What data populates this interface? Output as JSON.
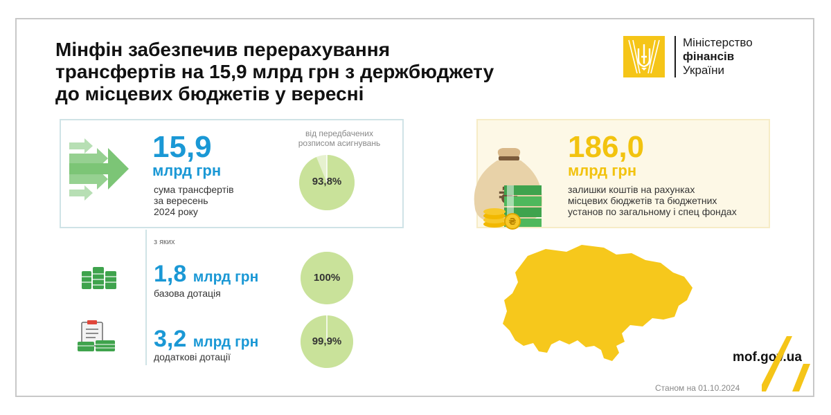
{
  "title": {
    "line1": "Мінфін забезпечив перерахування",
    "line2": "трансфертів на 15,9 млрд грн з держбюджету",
    "line3": "до місцевих бюджетів у вересні"
  },
  "logo": {
    "line1": "Міністерство",
    "line2": "фінансів",
    "line3": "України"
  },
  "total": {
    "value": "15,9",
    "unit": "млрд грн",
    "desc1": "сума трансфертів",
    "desc2": "за вересень",
    "desc3": "2024 року",
    "note1": "від передбачених",
    "note2": "розписом асигнувань",
    "percent_label": "93,8%",
    "percent": 93.8
  },
  "of_which": "з яких",
  "items": [
    {
      "value": "1,8",
      "unit": "млрд грн",
      "desc": "базова дотація",
      "percent_label": "100%",
      "percent": 100
    },
    {
      "value": "3,2",
      "unit": "млрд грн",
      "desc": "додаткові дотації",
      "percent_label": "99,9%",
      "percent": 99.9
    }
  ],
  "balance": {
    "value": "186,0",
    "unit": "млрд грн",
    "desc1": "залишки коштів на рахунках",
    "desc2": "місцевих бюджетів та бюджетних",
    "desc3": "установ по загальному і спец фондах"
  },
  "website": "mof.gov.ua",
  "date_note": "Станом на 01.10.2024",
  "colors": {
    "blue": "#1a98d5",
    "yellow": "#f2c30f",
    "green_pie": "#c9e29a",
    "green_pie_light": "#e6f1cf",
    "arrow_green": "#7cc576"
  }
}
